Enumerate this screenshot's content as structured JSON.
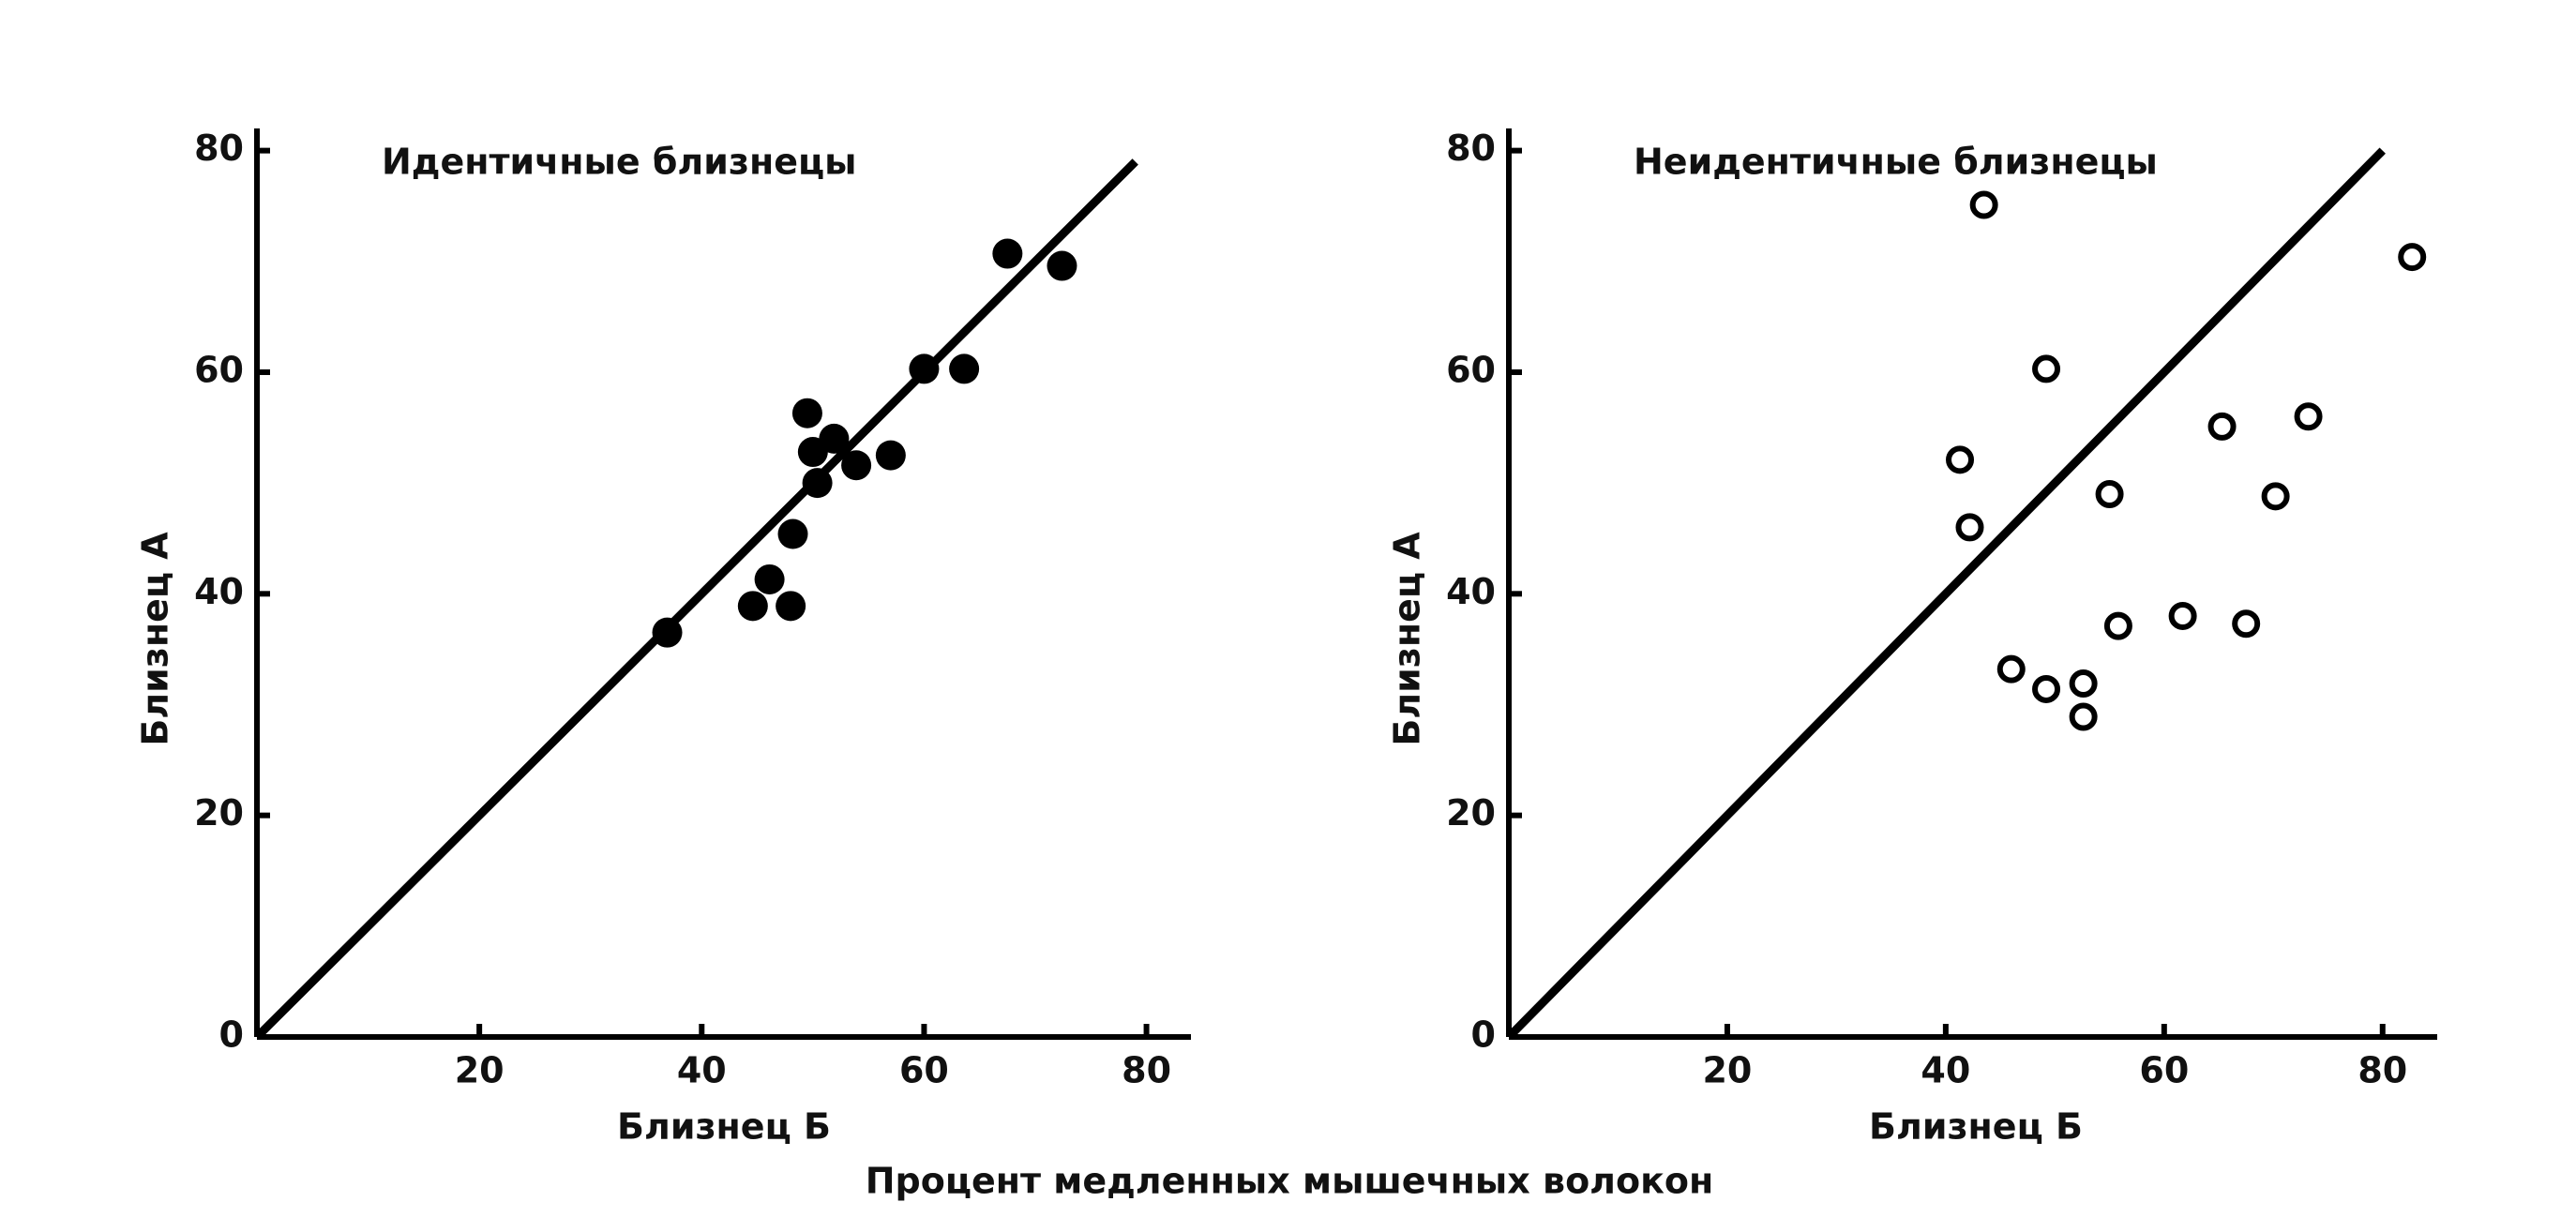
{
  "chart_data": [
    {
      "type": "scatter",
      "title": "Идентичные близнецы",
      "xlabel": "Близнец Б",
      "ylabel": "Близнец А",
      "marker": "filled",
      "color": "#000000",
      "x": [
        36.9,
        44.6,
        46.1,
        48,
        48.2,
        49.5,
        50,
        50.4,
        51.9,
        53.9,
        57,
        60,
        63.6,
        67.5,
        72.4
      ],
      "y": [
        36.5,
        38.9,
        41.3,
        38.9,
        45.4,
        56.3,
        52.8,
        50,
        54,
        51.6,
        52.5,
        60.3,
        60.3,
        70.7,
        69.6
      ],
      "diagonal": [
        0,
        79
      ],
      "xlim": [
        0,
        84
      ],
      "ylim": [
        0,
        82
      ],
      "xticks": [
        20,
        40,
        60,
        80
      ],
      "yticks": [
        0,
        20,
        40,
        60,
        80
      ]
    },
    {
      "type": "scatter",
      "title": "Неидентичные близнецы",
      "xlabel": "Близнец Б",
      "ylabel": "Близнец А",
      "marker": "open",
      "color": "#000000",
      "x": [
        43.5,
        82.7,
        49.2,
        41.3,
        42.2,
        55,
        65.3,
        73.2,
        70.2,
        55.8,
        61.7,
        67.5,
        46,
        49.2,
        52.6,
        52.6
      ],
      "y": [
        75.1,
        70.4,
        60.3,
        52.1,
        46,
        49,
        55.1,
        56,
        48.8,
        37.1,
        38,
        37.3,
        33.2,
        31.4,
        31.9,
        28.9
      ],
      "diagonal": [
        0,
        80
      ],
      "xlim": [
        0,
        85
      ],
      "ylim": [
        0,
        82
      ],
      "xticks": [
        20,
        40,
        60,
        80
      ],
      "yticks": [
        0,
        20,
        40,
        60,
        80
      ]
    }
  ],
  "caption": "Процент медленных мышечных волокон"
}
